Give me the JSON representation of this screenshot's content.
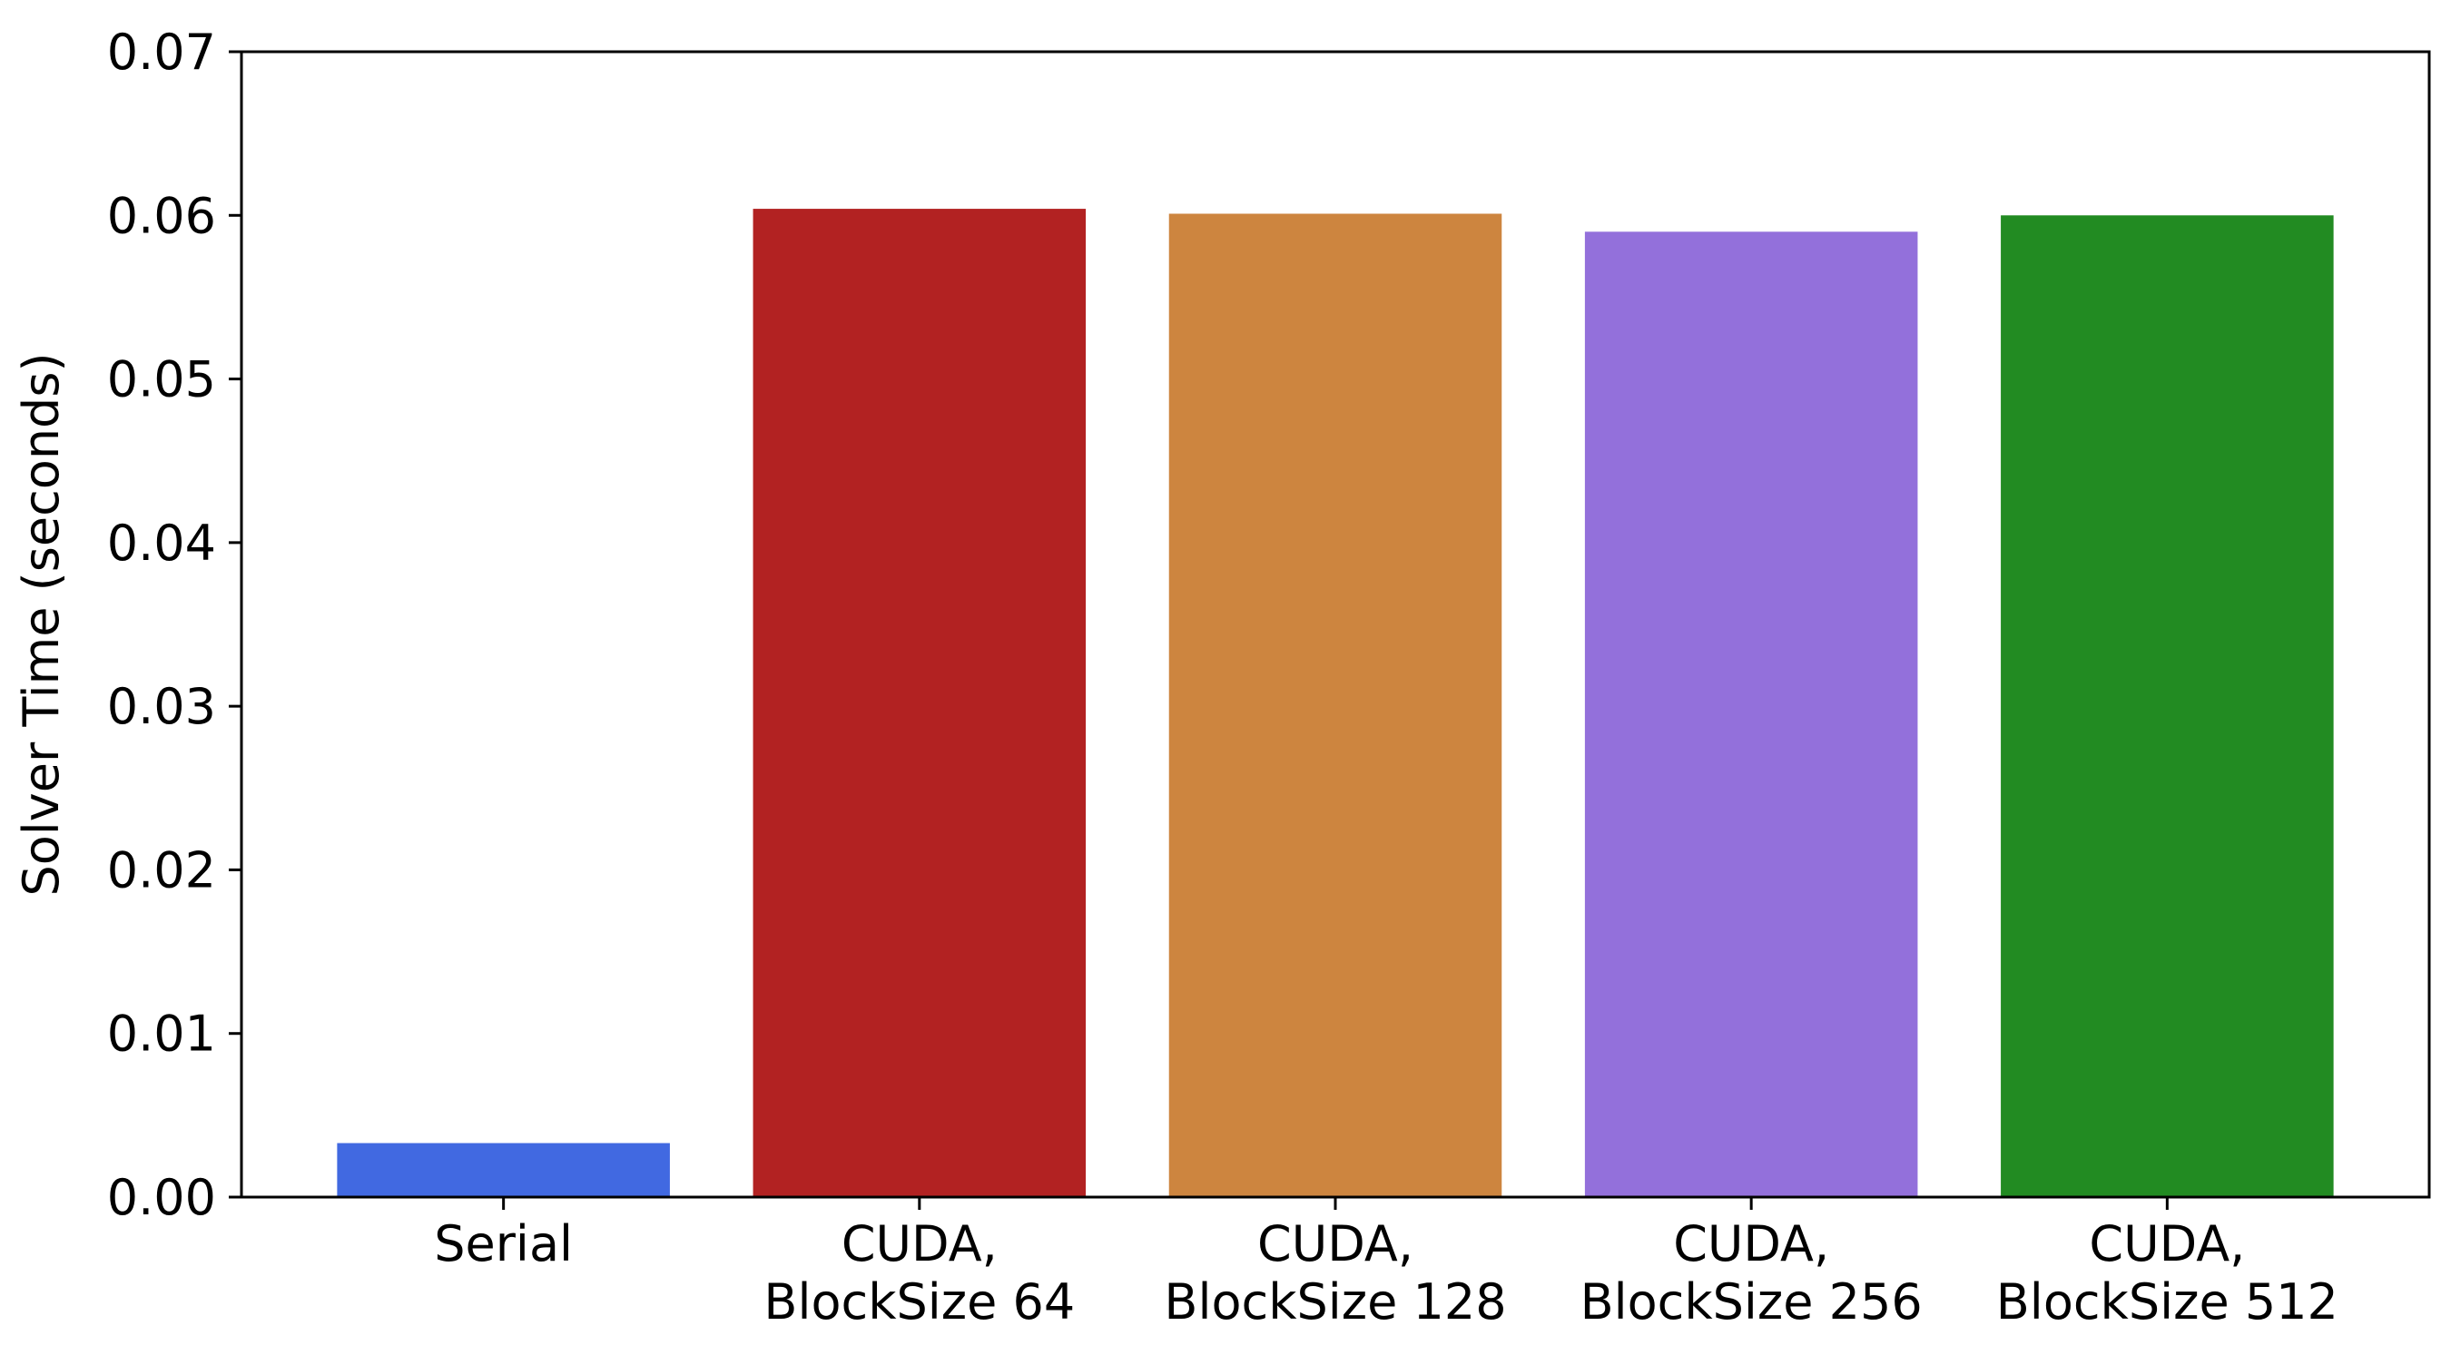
{
  "chart_data": {
    "type": "bar",
    "title": "",
    "xlabel": "",
    "ylabel": "Solver Time (seconds)",
    "ylim": [
      0,
      0.07
    ],
    "yticks": [
      "0.00",
      "0.01",
      "0.02",
      "0.03",
      "0.04",
      "0.05",
      "0.06",
      "0.07"
    ],
    "grid": false,
    "categories": [
      [
        "Serial"
      ],
      [
        "CUDA,",
        "BlockSize 64"
      ],
      [
        "CUDA,",
        "BlockSize 128"
      ],
      [
        "CUDA,",
        "BlockSize 256"
      ],
      [
        "CUDA,",
        "BlockSize 512"
      ]
    ],
    "values": [
      0.0033,
      0.0604,
      0.0601,
      0.059,
      0.06
    ],
    "colors": [
      "#4169e1",
      "#b22222",
      "#cd853f",
      "#9370db",
      "#228b22"
    ]
  }
}
